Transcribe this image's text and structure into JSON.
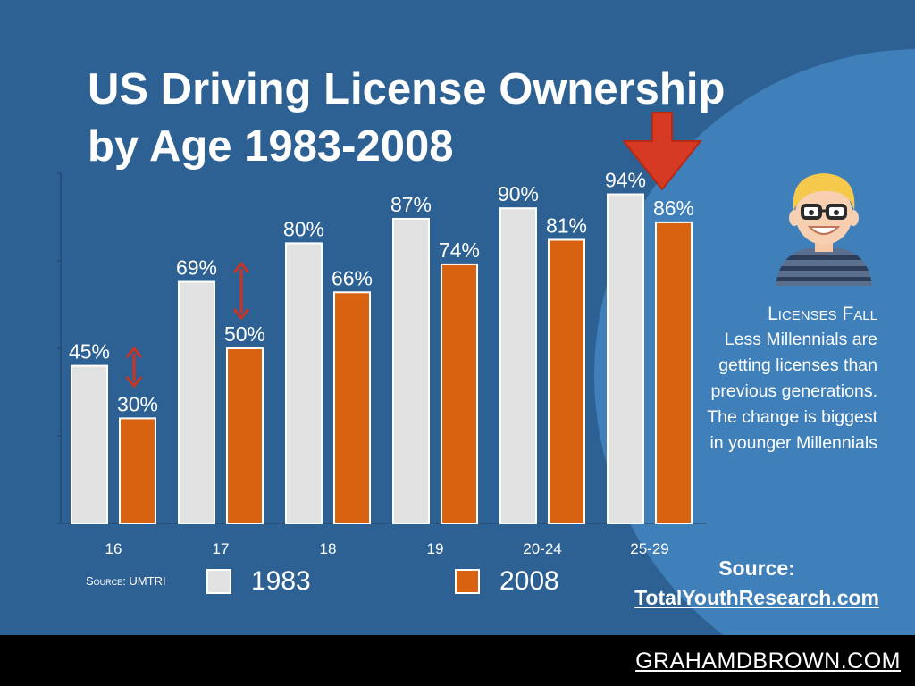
{
  "title": {
    "line1": "US Driving License Ownership",
    "line2": "by Age 1983-2008"
  },
  "chart_data": {
    "type": "bar",
    "categories": [
      "16",
      "17",
      "18",
      "19",
      "20-24",
      "25-29"
    ],
    "series": [
      {
        "name": "1983",
        "values": [
          45,
          69,
          80,
          87,
          90,
          94
        ],
        "labels": [
          "45%",
          "69%",
          "80%",
          "87%",
          "90%",
          "94%"
        ],
        "color": "#e2e2e2"
      },
      {
        "name": "2008",
        "values": [
          30,
          50,
          66,
          74,
          81,
          86
        ],
        "labels": [
          "30%",
          "50%",
          "66%",
          "74%",
          "81%",
          "86%"
        ],
        "color": "#d8620f"
      }
    ],
    "ylim": [
      0,
      100
    ],
    "grid": false,
    "legend": "bottom"
  },
  "source_small": {
    "prefix": "Source",
    "sep": ": ",
    "name": "UMTRI"
  },
  "legend": {
    "label_1983": "1983",
    "label_2008": "2008"
  },
  "note": {
    "heading": "Licenses Fall",
    "body": "Less Millennials are getting licenses than previous generations. The change is biggest in younger Millennials"
  },
  "source_big": {
    "label": "Source:",
    "url": "TotalYouthResearch.com"
  },
  "footer": {
    "text": "GRAHAMDBROWN.COM"
  },
  "colors": {
    "background": "#2e6193",
    "circle": "#3f7fba",
    "bar_1983": "#e2e2e2",
    "bar_2008": "#d8620f",
    "arrow": "#cc3322",
    "footer": "#000000"
  },
  "icons": {
    "change_arrows": "double-arrow-icon",
    "drop_arrow": "down-arrow-icon",
    "avatar": "millennial-avatar-icon"
  }
}
